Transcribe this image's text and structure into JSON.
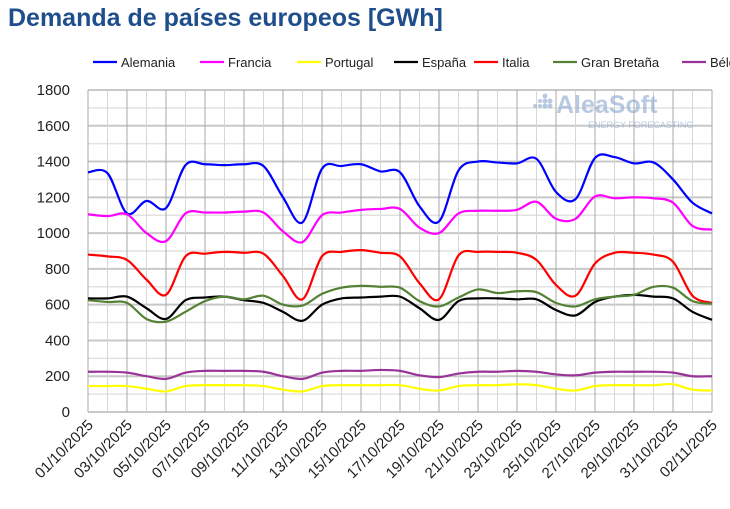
{
  "chart_data": {
    "type": "line",
    "title": "Demanda de países europeos [GWh]",
    "xlabel": "",
    "ylabel": "",
    "ylim": [
      0,
      1800
    ],
    "yticks": [
      0,
      200,
      400,
      600,
      800,
      1000,
      1200,
      1400,
      1600,
      1800
    ],
    "grid": true,
    "legend": "top",
    "x": [
      "01/10/2025",
      "02/10/2025",
      "03/10/2025",
      "04/10/2025",
      "05/10/2025",
      "06/10/2025",
      "07/10/2025",
      "08/10/2025",
      "09/10/2025",
      "10/10/2025",
      "11/10/2025",
      "12/10/2025",
      "13/10/2025",
      "14/10/2025",
      "15/10/2025",
      "16/10/2025",
      "17/10/2025",
      "18/10/2025",
      "19/10/2025",
      "20/10/2025",
      "21/10/2025",
      "22/10/2025",
      "23/10/2025",
      "24/10/2025",
      "25/10/2025",
      "26/10/2025",
      "27/10/2025",
      "28/10/2025",
      "29/10/2025",
      "30/10/2025",
      "31/10/2025",
      "01/11/2025",
      "02/11/2025"
    ],
    "xtick_labels": [
      "01/10/2025",
      "03/10/2025",
      "05/10/2025",
      "07/10/2025",
      "09/10/2025",
      "11/10/2025",
      "13/10/2025",
      "15/10/2025",
      "17/10/2025",
      "19/10/2025",
      "21/10/2025",
      "23/10/2025",
      "25/10/2025",
      "27/10/2025",
      "29/10/2025",
      "31/10/2025",
      "02/11/2025"
    ],
    "series": [
      {
        "name": "Alemania",
        "color": "#0000ff",
        "values": [
          1340,
          1335,
          1110,
          1180,
          1140,
          1380,
          1385,
          1380,
          1385,
          1375,
          1200,
          1060,
          1360,
          1375,
          1385,
          1345,
          1340,
          1150,
          1065,
          1350,
          1400,
          1395,
          1390,
          1415,
          1230,
          1190,
          1420,
          1425,
          1390,
          1395,
          1300,
          1170,
          1110
        ]
      },
      {
        "name": "Francia",
        "color": "#ff00ff",
        "values": [
          1105,
          1095,
          1105,
          1000,
          955,
          1110,
          1115,
          1115,
          1120,
          1115,
          1010,
          950,
          1100,
          1115,
          1130,
          1135,
          1135,
          1030,
          1000,
          1110,
          1125,
          1125,
          1130,
          1175,
          1080,
          1080,
          1205,
          1195,
          1200,
          1195,
          1170,
          1040,
          1020
        ]
      },
      {
        "name": "Portugal",
        "color": "#ffff00",
        "values": [
          145,
          145,
          145,
          130,
          115,
          145,
          150,
          150,
          150,
          145,
          125,
          115,
          145,
          150,
          150,
          150,
          150,
          130,
          120,
          145,
          150,
          150,
          155,
          150,
          130,
          120,
          145,
          150,
          150,
          150,
          155,
          125,
          120
        ]
      },
      {
        "name": "España",
        "color": "#000000",
        "values": [
          635,
          635,
          645,
          580,
          520,
          625,
          640,
          645,
          625,
          610,
          560,
          510,
          600,
          635,
          640,
          645,
          645,
          580,
          515,
          620,
          635,
          635,
          630,
          630,
          570,
          540,
          615,
          645,
          655,
          645,
          635,
          560,
          515
        ]
      },
      {
        "name": "Italia",
        "color": "#ff0000",
        "values": [
          880,
          870,
          850,
          740,
          655,
          870,
          885,
          895,
          890,
          885,
          760,
          630,
          870,
          895,
          905,
          890,
          870,
          720,
          630,
          875,
          895,
          895,
          890,
          850,
          710,
          650,
          830,
          890,
          890,
          880,
          840,
          650,
          610
        ]
      },
      {
        "name": "Gran Bretaña",
        "color": "#548235",
        "values": [
          625,
          615,
          610,
          520,
          505,
          560,
          620,
          645,
          630,
          650,
          600,
          595,
          660,
          695,
          705,
          700,
          695,
          620,
          590,
          640,
          685,
          665,
          675,
          670,
          610,
          590,
          630,
          645,
          655,
          700,
          695,
          620,
          605
        ]
      },
      {
        "name": "Bélgica",
        "color": "#993399",
        "values": [
          225,
          225,
          220,
          200,
          185,
          220,
          230,
          230,
          230,
          225,
          200,
          185,
          220,
          230,
          230,
          235,
          230,
          205,
          195,
          215,
          225,
          225,
          230,
          225,
          210,
          205,
          220,
          225,
          225,
          225,
          220,
          200,
          200
        ]
      }
    ]
  },
  "watermark": {
    "brand": "AleaSoft",
    "tagline": "ENERGY FORECASTING"
  }
}
